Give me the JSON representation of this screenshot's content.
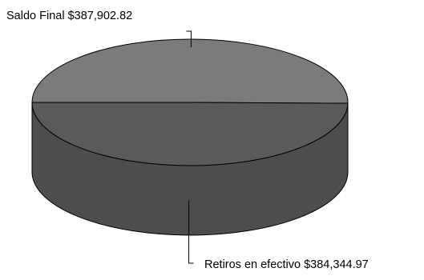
{
  "chart_data": {
    "type": "pie",
    "style": "3d",
    "categories": [
      "Saldo Final",
      "Retiros en efectivo"
    ],
    "values": [
      387902.82,
      384344.97
    ],
    "labels": [
      "Saldo Final $387,902.82",
      "Retiros en efectivo $384,344.97"
    ],
    "colors": {
      "saldo_final_top": "#7b7b7b",
      "retiros_top": "#5a5a5a",
      "side": "#4d4d4d",
      "outline": "#000000"
    },
    "legend": "none"
  }
}
